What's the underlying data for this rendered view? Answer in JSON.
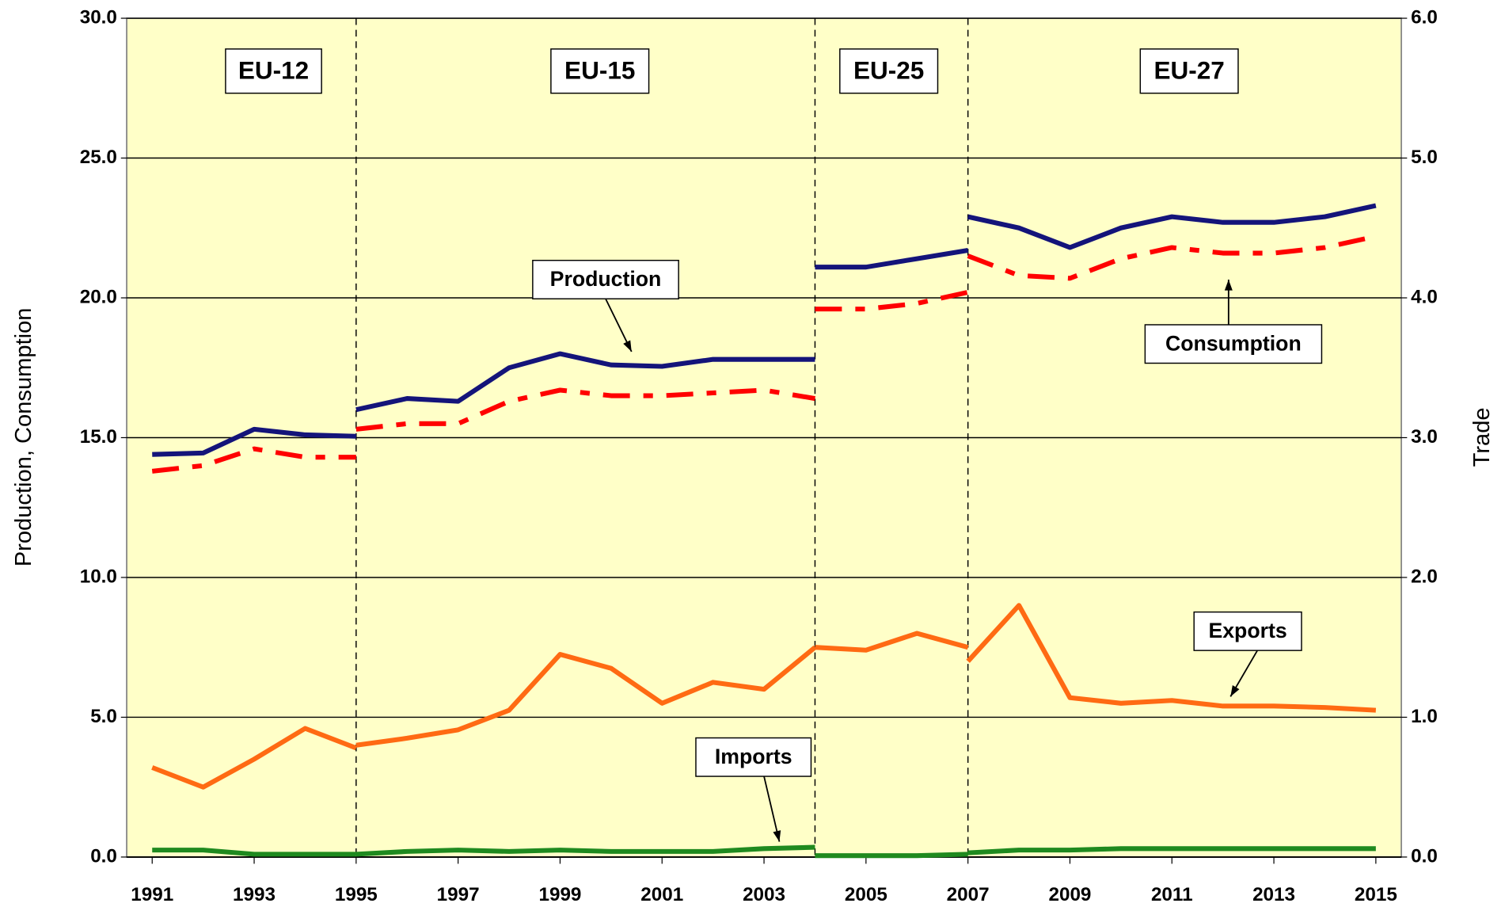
{
  "chart_data": {
    "type": "line",
    "ylabel": "Production, Consumption",
    "y2label": "Trade",
    "x": [
      1991,
      1992,
      1993,
      1994,
      1995,
      null,
      1995,
      1996,
      1997,
      1998,
      1999,
      2000,
      2001,
      2002,
      2003,
      2004,
      null,
      2004,
      2005,
      2006,
      2007,
      null,
      2007,
      2008,
      2009,
      2010,
      2011,
      2012,
      2013,
      2014,
      2015
    ],
    "xlim": [
      1990.5,
      2015.5
    ],
    "xticks": [
      1991,
      1993,
      1995,
      1997,
      1999,
      2001,
      2003,
      2005,
      2007,
      2009,
      2011,
      2013,
      2015
    ],
    "ylim": [
      0,
      30
    ],
    "yticks": [
      {
        "value": 0,
        "label": "0.0"
      },
      {
        "value": 5,
        "label": "5.0"
      },
      {
        "value": 10,
        "label": "10.0"
      },
      {
        "value": 15,
        "label": "15.0"
      },
      {
        "value": 20,
        "label": "20.0"
      },
      {
        "value": 25,
        "label": "25.0"
      },
      {
        "value": 30,
        "label": "30.0"
      }
    ],
    "y2lim": [
      0,
      6
    ],
    "y2ticks": [
      {
        "value": 0,
        "label": "0.0"
      },
      {
        "value": 1,
        "label": "1.0"
      },
      {
        "value": 2,
        "label": "2.0"
      },
      {
        "value": 3,
        "label": "3.0"
      },
      {
        "value": 4,
        "label": "4.0"
      },
      {
        "value": 5,
        "label": "5.0"
      },
      {
        "value": 6,
        "label": "6.0"
      }
    ],
    "grid": true,
    "dividers": [
      1995,
      2004,
      2007
    ],
    "periods": [
      "EU-12",
      "EU-15",
      "EU-25",
      "EU-27"
    ],
    "series": [
      {
        "name": "Production",
        "color": "#14147a",
        "style": "solid",
        "values": [
          14.4,
          14.45,
          15.3,
          15.1,
          15.05,
          null,
          16.0,
          16.4,
          16.3,
          17.5,
          18.0,
          17.6,
          17.55,
          17.8,
          17.8,
          17.8,
          null,
          21.1,
          21.1,
          21.4,
          21.7,
          null,
          22.9,
          22.5,
          21.8,
          22.5,
          22.9,
          22.7,
          22.7,
          22.9,
          23.3
        ]
      },
      {
        "name": "Consumption",
        "color": "#ff0000",
        "style": "dashed",
        "values": [
          13.8,
          14.0,
          14.6,
          14.3,
          14.3,
          null,
          15.3,
          15.5,
          15.5,
          16.3,
          16.7,
          16.5,
          16.5,
          16.6,
          16.7,
          16.4,
          null,
          19.6,
          19.6,
          19.8,
          20.2,
          null,
          21.5,
          20.8,
          20.7,
          21.4,
          21.8,
          21.6,
          21.6,
          21.8,
          22.2
        ]
      },
      {
        "name": "Exports",
        "color": "#ff6a13",
        "style": "solid",
        "axis": "y2",
        "values": [
          0.64,
          0.5,
          0.7,
          0.92,
          0.78,
          null,
          0.8,
          0.85,
          0.91,
          1.05,
          1.45,
          1.35,
          1.1,
          1.25,
          1.2,
          1.5,
          null,
          1.5,
          1.48,
          1.6,
          1.5,
          null,
          1.4,
          1.8,
          1.14,
          1.1,
          1.12,
          1.08,
          1.08,
          1.07,
          1.05
        ]
      },
      {
        "name": "Imports",
        "color": "#1f8a1f",
        "style": "solid",
        "axis": "y2",
        "values": [
          0.05,
          0.05,
          0.02,
          0.02,
          0.02,
          null,
          0.02,
          0.04,
          0.05,
          0.04,
          0.05,
          0.04,
          0.04,
          0.04,
          0.06,
          0.07,
          null,
          0.01,
          0.01,
          0.01,
          0.02,
          null,
          0.03,
          0.05,
          0.05,
          0.06,
          0.06,
          0.06,
          0.06,
          0.06,
          0.06
        ]
      }
    ]
  }
}
